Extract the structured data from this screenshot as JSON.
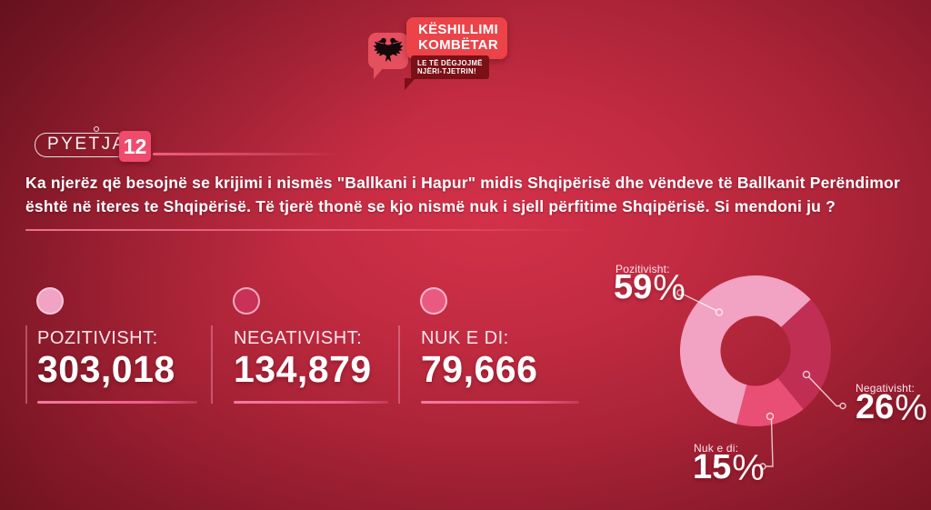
{
  "logo": {
    "eagle_icon": "albanian-double-headed-eagle",
    "title_line1": "KËSHILLIMI",
    "title_line2": "KOMBËTAR",
    "subtitle_line1": "LE TË DËGJOJMË",
    "subtitle_line2": "NJËRI-TJETRIN!"
  },
  "question": {
    "label": "PYETJA",
    "number": "12",
    "text_line1": "Ka njerëz që besojnë se krijimi i nismës \"Ballkani i Hapur\" midis Shqipërisë dhe vëndeve të Ballkanit Perëndimor",
    "text_line2": "është në iteres te Shqipërisë. Të tjerë thonë se kjo nismë nuk i sjell përfitime Shqipërisë. Si mendoni ju ?"
  },
  "stats": [
    {
      "label": "POZITIVISHT:",
      "value": "303,018",
      "color": "#f2a2c3"
    },
    {
      "label": "NEGATIVISHT:",
      "value": "134,879",
      "color": "#ca3158"
    },
    {
      "label": "NUK E DI:",
      "value": "79,666",
      "color": "#ea5a80"
    }
  ],
  "chart_data": {
    "type": "pie",
    "subtype": "donut",
    "categories": [
      "Pozitivisht",
      "Negativisht",
      "Nuk e di"
    ],
    "values": [
      59,
      26,
      15
    ],
    "unit": "%",
    "colors": {
      "Pozitivisht": "#f2a2c3",
      "Negativisht": "#c02e53",
      "Nuk e di": "#e94e74"
    },
    "start_angle_deg": 47,
    "order_clockwise": [
      "Negativisht",
      "Nuk e di",
      "Pozitivisht"
    ],
    "legend_position": "callout-labels",
    "labels": [
      {
        "id": "poz",
        "name": "Pozitivisht:",
        "value": "59",
        "suffix": "%"
      },
      {
        "id": "neg",
        "name": "Negativisht:",
        "value": "26",
        "suffix": "%"
      },
      {
        "id": "nuk",
        "name": "Nuk e di:",
        "value": "15",
        "suffix": "%"
      }
    ]
  }
}
